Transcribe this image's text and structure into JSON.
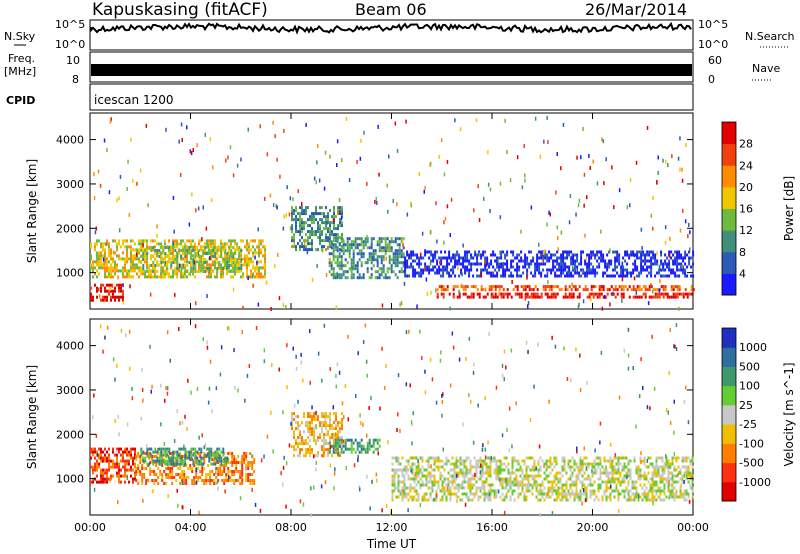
{
  "header": {
    "title": "Kapuskasing (fitACF)",
    "beam": "Beam 06",
    "date": "26/Mar/2014"
  },
  "strips": {
    "nsky_label": "N.Sky",
    "nsky_ticks": [
      "10^5",
      "10^0"
    ],
    "nsearch_label": "N.Search",
    "nsearch_ticks": [
      "10^5",
      "10^0"
    ],
    "freq_label": "Freq.",
    "freq_unit": "[MHz]",
    "freq_ticks": [
      "10",
      "8"
    ],
    "nave_label": "Nave",
    "nave_ticks": [
      "60",
      "0"
    ],
    "cpid_label": "CPID",
    "cpid_value": "icescan 1200"
  },
  "chart_data": [
    {
      "type": "heatmap",
      "panel": "power",
      "ylabel": "Slant Range [km]",
      "xlabel": "",
      "yticks": [
        "1000",
        "2000",
        "3000",
        "4000"
      ],
      "ylim": [
        180,
        4600
      ],
      "xlim_hours": [
        0,
        24
      ],
      "colorbar": {
        "label": "Power [dB]",
        "ticks": [
          "4",
          "8",
          "12",
          "16",
          "20",
          "24",
          "28"
        ],
        "colors": [
          "#1a1aff",
          "#2a5bb8",
          "#3f8f7a",
          "#6fba3c",
          "#f0c800",
          "#ff8c00",
          "#f04010",
          "#e00000"
        ]
      },
      "bands": [
        {
          "t0": 0.0,
          "t1": 7.0,
          "r0": 900,
          "r1": 1750,
          "level": 4
        },
        {
          "t0": 0.0,
          "t1": 1.3,
          "r0": 350,
          "r1": 750,
          "level": 7
        },
        {
          "t0": 2.0,
          "t1": 6.0,
          "r0": 1000,
          "r1": 1600,
          "level": 3
        },
        {
          "t0": 8.0,
          "t1": 10.0,
          "r0": 1500,
          "r1": 2500,
          "level": 2
        },
        {
          "t0": 9.5,
          "t1": 12.5,
          "r0": 900,
          "r1": 1800,
          "level": 2
        },
        {
          "t0": 12.5,
          "t1": 24.0,
          "r0": 950,
          "r1": 1500,
          "level": 0
        },
        {
          "t0": 13.8,
          "t1": 24.0,
          "r0": 420,
          "r1": 550,
          "level": 7
        },
        {
          "t0": 13.8,
          "t1": 24.0,
          "r0": 600,
          "r1": 720,
          "level": 6
        }
      ]
    },
    {
      "type": "heatmap",
      "panel": "velocity",
      "ylabel": "Slant Range [km]",
      "xlabel": "Time UT",
      "xticks": [
        "00:00",
        "04:00",
        "08:00",
        "12:00",
        "16:00",
        "20:00",
        "00:00"
      ],
      "yticks": [
        "1000",
        "2000",
        "3000",
        "4000"
      ],
      "ylim": [
        180,
        4600
      ],
      "xlim_hours": [
        0,
        24
      ],
      "colorbar": {
        "label": "Velocity [m s^-1]",
        "ticks": [
          "1000",
          "500",
          "100",
          "25",
          "-25",
          "-100",
          "-500",
          "-1000"
        ],
        "colors": [
          "#1f2fbf",
          "#2d6f9f",
          "#3e9a6a",
          "#66cc33",
          "#c8c8c8",
          "#f0c000",
          "#ff8000",
          "#ff3010",
          "#e00000"
        ]
      },
      "bands": [
        {
          "t0": 0.0,
          "t1": 1.8,
          "r0": 900,
          "r1": 1700,
          "level": 7
        },
        {
          "t0": 1.8,
          "t1": 6.5,
          "r0": 900,
          "r1": 1600,
          "level": 6
        },
        {
          "t0": 2.0,
          "t1": 5.5,
          "r0": 1300,
          "r1": 1700,
          "level": 2
        },
        {
          "t0": 8.0,
          "t1": 10.0,
          "r0": 1500,
          "r1": 2500,
          "level": 5
        },
        {
          "t0": 9.5,
          "t1": 11.5,
          "r0": 1600,
          "r1": 1900,
          "level": 2
        },
        {
          "t0": 12.0,
          "t1": 24.0,
          "r0": 500,
          "r1": 1500,
          "level": 4
        }
      ]
    }
  ]
}
